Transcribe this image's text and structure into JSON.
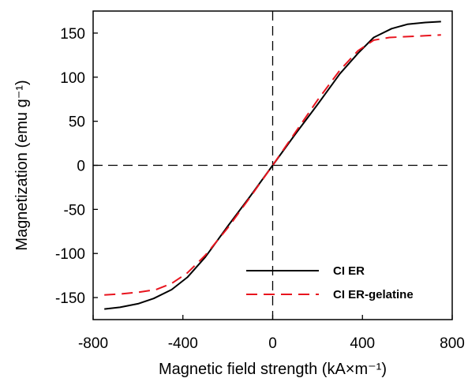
{
  "chart_data": {
    "type": "line",
    "xlabel": "Magnetic field strength (kA×m⁻¹)",
    "ylabel": "Magnetization (emu g⁻¹)",
    "xlim": [
      -800,
      800
    ],
    "ylim": [
      -175,
      175
    ],
    "xticks": [
      -800,
      -400,
      0,
      400,
      800
    ],
    "yticks": [
      -150,
      -100,
      -50,
      0,
      50,
      100,
      150
    ],
    "xtick_labels": [
      "-800",
      "-400",
      "0",
      "400",
      "800"
    ],
    "ytick_labels": [
      "-150",
      "-100",
      "-50",
      "0",
      "50",
      "100",
      "150"
    ],
    "grid": false,
    "reference_lines": [
      {
        "axis": "x",
        "value": 0,
        "style": "dashed",
        "color": "#000000"
      },
      {
        "axis": "y",
        "value": 0,
        "style": "dashed",
        "color": "#000000"
      }
    ],
    "legend_position": "bottom-right",
    "series": [
      {
        "name": "CI ER",
        "color": "#000000",
        "style": "solid",
        "x": [
          -750,
          -680,
          -600,
          -530,
          -450,
          -380,
          -300,
          -200,
          -100,
          0,
          100,
          200,
          300,
          380,
          450,
          530,
          600,
          680,
          750
        ],
        "y": [
          -163,
          -161,
          -157,
          -151,
          -141,
          -127,
          -104,
          -69,
          -35,
          0,
          35,
          69,
          104,
          127,
          145,
          155,
          160,
          162,
          163
        ]
      },
      {
        "name": "CI ER-gelatine",
        "color": "#e8141e",
        "style": "dashed",
        "x": [
          -750,
          -680,
          -600,
          -520,
          -450,
          -380,
          -300,
          -200,
          -100,
          0,
          100,
          200,
          300,
          380,
          450,
          520,
          600,
          680,
          750
        ],
        "y": [
          -147,
          -146,
          -144,
          -141,
          -134,
          -122,
          -102,
          -71,
          -36,
          0,
          37,
          74,
          108,
          130,
          142,
          145,
          146,
          147,
          148
        ]
      }
    ]
  },
  "colors": {
    "axis": "#000000",
    "background": "#ffffff"
  }
}
